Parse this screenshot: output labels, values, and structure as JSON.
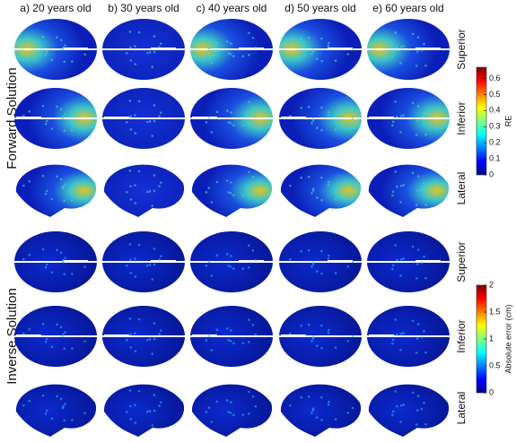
{
  "columns": [
    "a) 20 years old",
    "b) 30 years old",
    "c) 40 years old",
    "d) 50 years old",
    "e) 60 years old"
  ],
  "groups": [
    {
      "label": "Forward Solution",
      "views": [
        "Superior",
        "Inferior",
        "Lateral"
      ],
      "colorbar": {
        "label": "RE",
        "lim": [
          0,
          0.67
        ],
        "ticks": [
          0,
          0.1,
          0.2,
          0.3,
          0.4,
          0.5,
          0.6
        ]
      }
    },
    {
      "label": "Inverse Solution",
      "views": [
        "Superior",
        "Inferior",
        "Lateral"
      ],
      "colorbar": {
        "label": "Absolute error (cm)",
        "lim": [
          0,
          2
        ],
        "ticks": [
          0,
          0.5,
          1,
          1.5,
          2
        ]
      }
    }
  ]
}
